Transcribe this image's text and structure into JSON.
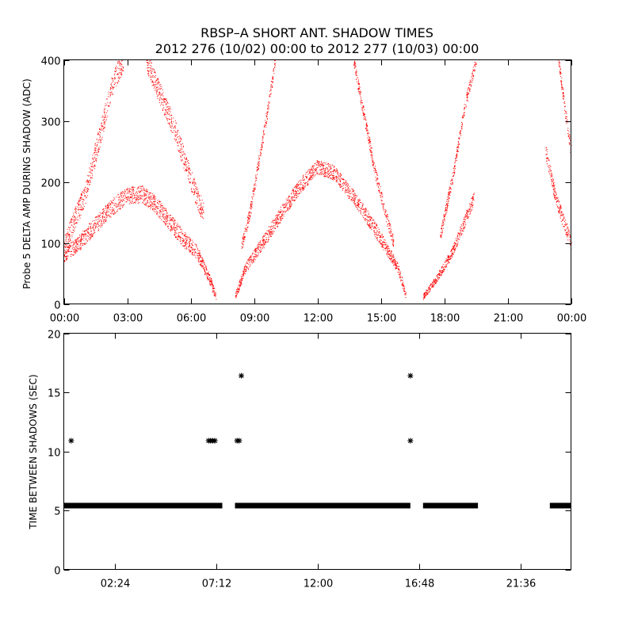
{
  "title": {
    "line1": "RBSP–A SHORT ANT. SHADOW TIMES",
    "line2": "2012 276 (10/02) 00:00 to 2012 277 (10/03) 00:00"
  },
  "chart_data": [
    {
      "type": "scatter",
      "name": "top",
      "ylabel": "Probe 5 DELTA AMP DURING SHADOW (ADC)",
      "xlim": [
        0,
        24
      ],
      "ylim": [
        0,
        400
      ],
      "xticks": [
        0,
        3,
        6,
        9,
        12,
        15,
        18,
        21,
        24
      ],
      "xticklabels": [
        "00:00",
        "03:00",
        "06:00",
        "09:00",
        "12:00",
        "15:00",
        "18:00",
        "21:00",
        "00:00"
      ],
      "yticks": [
        0,
        100,
        200,
        300,
        400
      ],
      "yticklabels": [
        "0",
        "100",
        "200",
        "300",
        "400"
      ],
      "color": "#ff0000",
      "note": "dense point clouds; envelopes described as branches (hours, value)",
      "branches": [
        {
          "band": 14,
          "pts": [
            [
              0.0,
              80
            ],
            [
              0.7,
              100
            ],
            [
              1.5,
              130
            ],
            [
              2.3,
              160
            ],
            [
              3.0,
              178
            ],
            [
              3.7,
              180
            ],
            [
              4.3,
              165
            ],
            [
              5.0,
              135
            ],
            [
              5.7,
              105
            ],
            [
              6.3,
              85
            ],
            [
              6.9,
              40
            ],
            [
              7.2,
              12
            ]
          ]
        },
        {
          "band": 18,
          "pts": [
            [
              0.0,
              95
            ],
            [
              1.0,
              180
            ],
            [
              1.8,
              290
            ],
            [
              2.3,
              360
            ],
            [
              2.8,
              400
            ]
          ]
        },
        {
          "band": 18,
          "pts": [
            [
              3.9,
              400
            ],
            [
              4.6,
              340
            ],
            [
              5.3,
              280
            ],
            [
              5.9,
              215
            ],
            [
              6.3,
              175
            ],
            [
              6.6,
              150
            ]
          ]
        },
        {
          "band": 12,
          "pts": [
            [
              8.1,
              12
            ],
            [
              8.6,
              60
            ],
            [
              9.4,
              100
            ],
            [
              10.3,
              150
            ],
            [
              11.2,
              195
            ],
            [
              12.0,
              225
            ],
            [
              12.8,
              215
            ],
            [
              13.6,
              180
            ],
            [
              14.5,
              135
            ],
            [
              15.2,
              95
            ],
            [
              15.8,
              60
            ],
            [
              16.2,
              12
            ]
          ]
        },
        {
          "band": 10,
          "pts": [
            [
              8.4,
              95
            ],
            [
              8.8,
              150
            ],
            [
              9.2,
              230
            ],
            [
              9.7,
              330
            ],
            [
              10.0,
              400
            ]
          ]
        },
        {
          "band": 10,
          "pts": [
            [
              13.7,
              400
            ],
            [
              14.2,
              310
            ],
            [
              14.7,
              220
            ],
            [
              15.2,
              150
            ],
            [
              15.6,
              100
            ]
          ]
        },
        {
          "band": 10,
          "pts": [
            [
              17.0,
              12
            ],
            [
              17.6,
              40
            ],
            [
              18.3,
              80
            ],
            [
              18.9,
              130
            ],
            [
              19.4,
              175
            ]
          ]
        },
        {
          "band": 10,
          "pts": [
            [
              17.8,
              110
            ],
            [
              18.4,
              210
            ],
            [
              19.0,
              330
            ],
            [
              19.5,
              400
            ]
          ]
        },
        {
          "band": 12,
          "pts": [
            [
              22.8,
              250
            ],
            [
              23.3,
              170
            ],
            [
              23.7,
              130
            ],
            [
              24.0,
              100
            ]
          ]
        },
        {
          "band": 10,
          "pts": [
            [
              23.4,
              400
            ],
            [
              23.7,
              320
            ],
            [
              24.0,
              250
            ]
          ]
        }
      ]
    },
    {
      "type": "scatter",
      "name": "bottom",
      "ylabel": "TIME BETWEEN SHADOWS (SEC)",
      "xlim": [
        0,
        24
      ],
      "ylim": [
        0,
        20
      ],
      "xticks": [
        2.4,
        7.2,
        12.0,
        16.8,
        21.6
      ],
      "xticklabels": [
        "02:24",
        "07:12",
        "12:00",
        "16:48",
        "21:36"
      ],
      "yticks": [
        0,
        5,
        10,
        15,
        20
      ],
      "yticklabels": [
        "0",
        "5",
        "10",
        "15",
        "20"
      ],
      "marker": "asterisk",
      "color": "#000000",
      "baseline_value": 5.4,
      "baseline_segments": [
        [
          0.0,
          7.5
        ],
        [
          8.1,
          16.4
        ],
        [
          17.0,
          19.6
        ],
        [
          23.0,
          24.0
        ]
      ],
      "outliers": [
        {
          "x": 0.35,
          "y": 10.9
        },
        {
          "x": 6.85,
          "y": 10.9
        },
        {
          "x": 6.95,
          "y": 10.9
        },
        {
          "x": 7.05,
          "y": 10.9
        },
        {
          "x": 7.15,
          "y": 10.9
        },
        {
          "x": 8.2,
          "y": 10.9
        },
        {
          "x": 8.3,
          "y": 10.9
        },
        {
          "x": 8.4,
          "y": 16.4
        },
        {
          "x": 16.4,
          "y": 16.4
        },
        {
          "x": 16.4,
          "y": 10.9
        }
      ]
    }
  ]
}
